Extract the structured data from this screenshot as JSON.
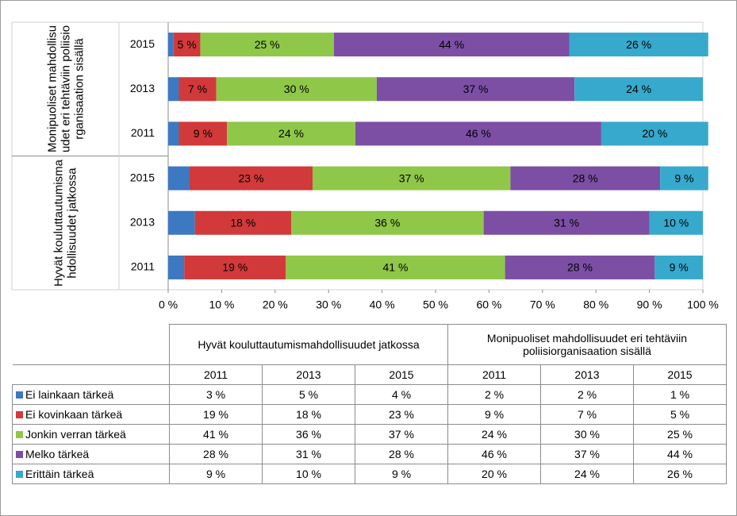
{
  "chart_data": {
    "type": "stacked_barh",
    "groups": [
      {
        "name": "Hyvät kouluttautumismahdollisuudet jatkossa",
        "categories": [
          "2011",
          "2013",
          "2015"
        ]
      },
      {
        "name": "Monipuoliset mahdollisuudet eri tehtäviin poliisiorganisaation sisällä",
        "categories": [
          "2011",
          "2013",
          "2015"
        ]
      }
    ],
    "series": [
      {
        "name": "Ei lainkaan tärkeä",
        "color": "#3d78c2",
        "values": [
          3,
          5,
          4,
          2,
          2,
          1
        ],
        "value_labels": [
          "3 %",
          "5 %",
          "4 %",
          "2 %",
          "2 %",
          "1 %"
        ]
      },
      {
        "name": "Ei kovinkaan tärkeä",
        "color": "#d2393a",
        "values": [
          19,
          18,
          23,
          9,
          7,
          5
        ],
        "value_labels": [
          "19 %",
          "18 %",
          "23 %",
          "9 %",
          "7 %",
          "5 %"
        ]
      },
      {
        "name": "Jonkin verran tärkeä",
        "color": "#8fc748",
        "values": [
          41,
          36,
          37,
          24,
          30,
          25
        ],
        "value_labels": [
          "41 %",
          "36 %",
          "37 %",
          "24 %",
          "30 %",
          "25 %"
        ]
      },
      {
        "name": "Melko tärkeä",
        "color": "#7c4fa5",
        "values": [
          28,
          31,
          28,
          46,
          37,
          44
        ],
        "value_labels": [
          "28 %",
          "31 %",
          "28 %",
          "46 %",
          "37 %",
          "44 %"
        ]
      },
      {
        "name": "Erittäin tärkeä",
        "color": "#36a9cc",
        "values": [
          9,
          10,
          9,
          20,
          24,
          26
        ],
        "value_labels": [
          "9 %",
          "10 %",
          "9 %",
          "20 %",
          "24 %",
          "26 %"
        ]
      }
    ],
    "xlim": [
      0,
      100
    ],
    "xticks": [
      {
        "value": 0,
        "label": "0 %"
      },
      {
        "value": 10,
        "label": "10 %"
      },
      {
        "value": 20,
        "label": "20 %"
      },
      {
        "value": 30,
        "label": "30 %"
      },
      {
        "value": 40,
        "label": "40 %"
      },
      {
        "value": 50,
        "label": "50 %"
      },
      {
        "value": 60,
        "label": "60 %"
      },
      {
        "value": 70,
        "label": "70 %"
      },
      {
        "value": 80,
        "label": "80 %"
      },
      {
        "value": 90,
        "label": "90 %"
      },
      {
        "value": 100,
        "label": "100 %"
      }
    ]
  }
}
